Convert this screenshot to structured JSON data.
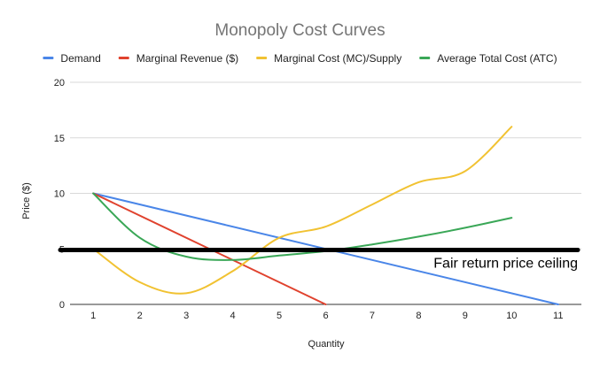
{
  "chart_data": {
    "type": "line",
    "title": "Monopoly Cost Curves",
    "xlabel": "Quantity",
    "ylabel": "Price ($)",
    "xlim": [
      0.5,
      11.5
    ],
    "ylim": [
      0,
      20
    ],
    "y_ticks": [
      0,
      5,
      10,
      15,
      20
    ],
    "x_ticks": [
      1,
      2,
      3,
      4,
      5,
      6,
      7,
      8,
      9,
      10,
      11
    ],
    "grid": true,
    "legend_position": "top",
    "series": [
      {
        "name": "Demand",
        "color": "#4a86e8",
        "smooth": false,
        "points": [
          [
            1,
            10
          ],
          [
            11,
            0
          ]
        ]
      },
      {
        "name": "Marginal Revenue ($)",
        "color": "#e0422e",
        "smooth": false,
        "points": [
          [
            1,
            10
          ],
          [
            6,
            0
          ]
        ]
      },
      {
        "name": "Marginal Cost (MC)/Supply",
        "color": "#f1c232",
        "smooth": true,
        "points": [
          [
            1,
            5
          ],
          [
            2,
            2
          ],
          [
            3,
            1
          ],
          [
            4,
            3
          ],
          [
            5,
            6
          ],
          [
            6,
            7
          ],
          [
            7,
            9
          ],
          [
            8,
            11
          ],
          [
            9,
            12
          ],
          [
            10,
            16
          ]
        ]
      },
      {
        "name": "Average Total Cost (ATC)",
        "color": "#3aa757",
        "smooth": true,
        "points": [
          [
            1,
            10
          ],
          [
            2,
            6
          ],
          [
            3,
            4.3
          ],
          [
            4,
            4
          ],
          [
            5,
            4.4
          ],
          [
            6,
            4.8
          ],
          [
            7,
            5.4
          ],
          [
            8,
            6.1
          ],
          [
            9,
            6.9
          ],
          [
            10,
            7.8
          ]
        ]
      }
    ],
    "annotations": [
      {
        "type": "horizontal-line",
        "y": 4.9,
        "x_from": 0.5,
        "x_to": 11.5,
        "color": "#000000",
        "label": "Fair return price ceiling"
      }
    ]
  }
}
